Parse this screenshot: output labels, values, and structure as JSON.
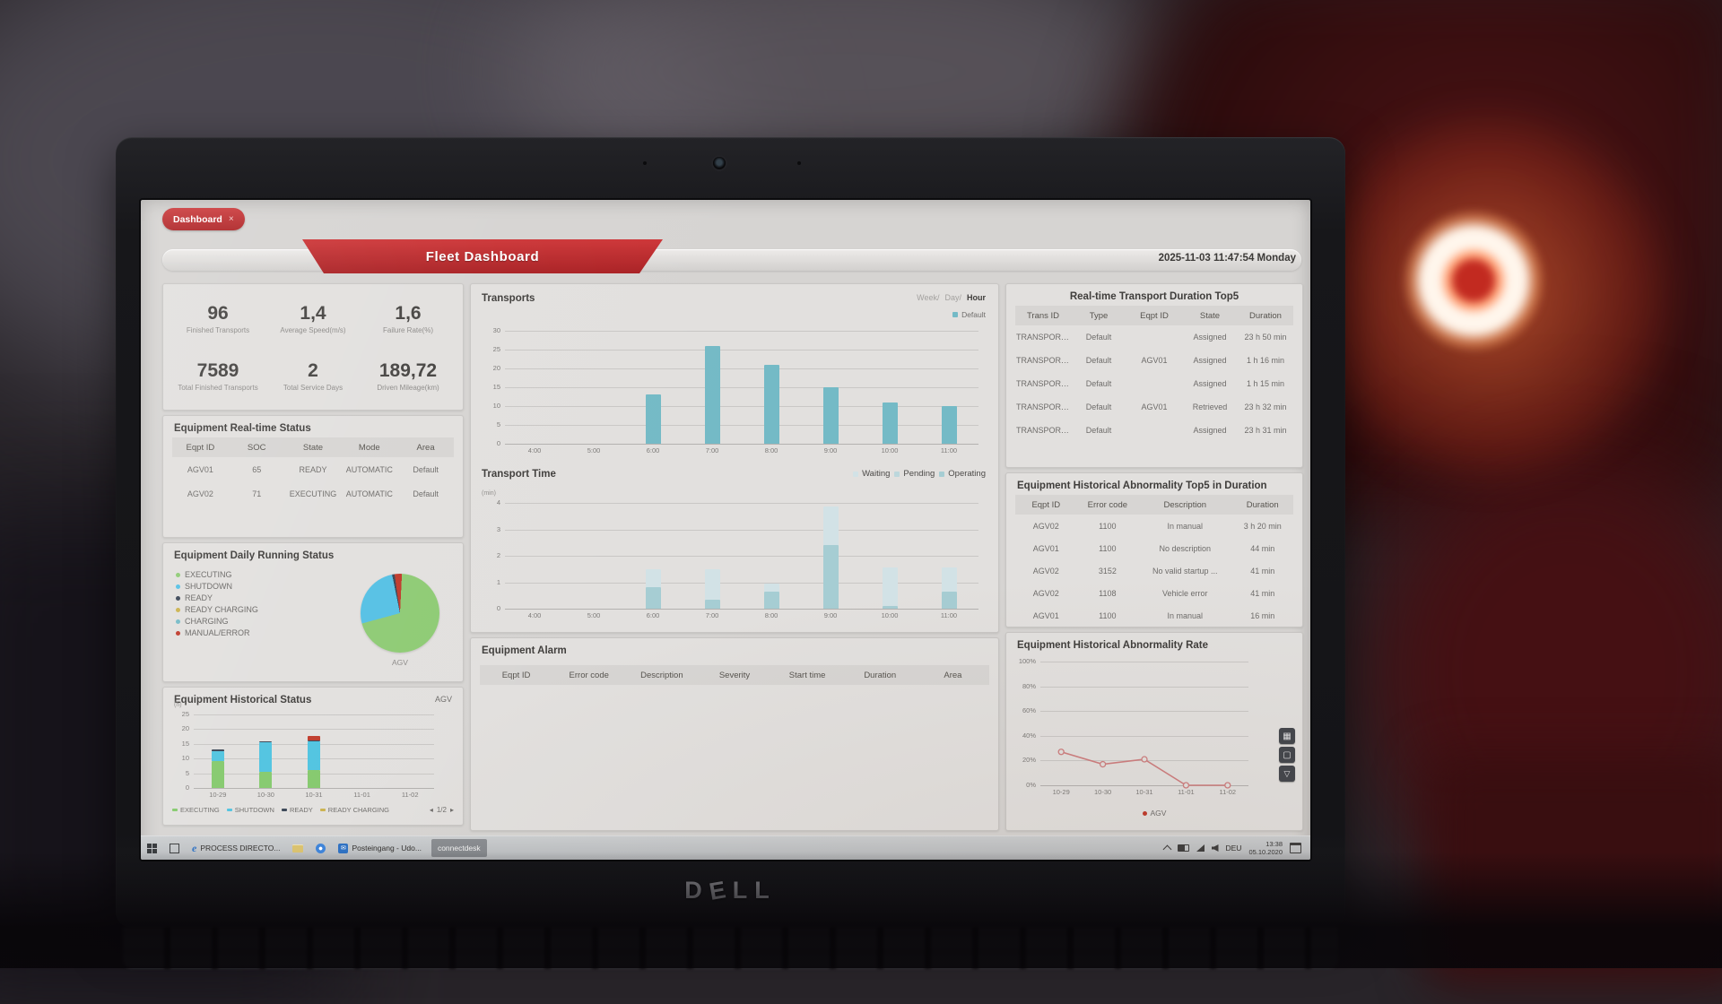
{
  "laptop": {
    "brand": "DELL",
    "letters": [
      "D",
      "E",
      "L",
      "L"
    ]
  },
  "tab": {
    "label": "Dashboard",
    "close": "×"
  },
  "header": {
    "title": "Fleet Dashboard",
    "datetime": "2025-11-03 11:47:54 Monday"
  },
  "kpis": [
    {
      "value": "96",
      "label": "Finished Transports"
    },
    {
      "value": "1,4",
      "label": "Average Speed(m/s)"
    },
    {
      "value": "1,6",
      "label": "Failure Rate(%)"
    },
    {
      "value": "7589",
      "label": "Total Finished Transports"
    },
    {
      "value": "2",
      "label": "Total Service Days"
    },
    {
      "value": "189,72",
      "label": "Driven Mileage(km)"
    }
  ],
  "panels": {
    "realtime": {
      "title": "Equipment Real-time Status",
      "columns": [
        "Eqpt ID",
        "SOC",
        "State",
        "Mode",
        "Area"
      ],
      "rows": [
        [
          "AGV01",
          "65",
          "READY",
          "AUTOMATIC",
          "Default"
        ],
        [
          "AGV02",
          "71",
          "EXECUTING",
          "AUTOMATIC",
          "Default"
        ]
      ]
    },
    "daily": {
      "title": "Equipment Daily Running Status",
      "axis_label": "AGV",
      "legend": [
        {
          "label": "EXECUTING",
          "color": "#8ecb74"
        },
        {
          "label": "SHUTDOWN",
          "color": "#55c0e4"
        },
        {
          "label": "READY",
          "color": "#3a4656"
        },
        {
          "label": "READY CHARGING",
          "color": "#cbb24d"
        },
        {
          "label": "CHARGING",
          "color": "#74bac6"
        },
        {
          "label": "MANUAL/ERROR",
          "color": "#bf3a2b"
        }
      ],
      "pie": {
        "start": -8,
        "slices": [
          {
            "label": "MANUAL/ERROR",
            "value": 3,
            "color": "#bf3a2b"
          },
          {
            "label": "EXECUTING",
            "value": 70,
            "color": "#8ecb74"
          },
          {
            "label": "SHUTDOWN",
            "value": 26,
            "color": "#55c0e4"
          },
          {
            "label": "READY",
            "value": 1,
            "color": "#3a4656"
          }
        ]
      }
    },
    "hist_status": {
      "title": "Equipment Historical Status",
      "corner_label": "AGV",
      "chart": {
        "type": "stack",
        "ylim": 25,
        "yticks": [
          0,
          5,
          10,
          15,
          20,
          25
        ],
        "unit": "(h)",
        "x": [
          "10-29",
          "10-30",
          "10-31",
          "11-01",
          "11-02"
        ],
        "series": [
          {
            "name": "EXECUTING",
            "color": "#84c96c",
            "values": [
              9,
              5.5,
              6,
              0,
              0
            ]
          },
          {
            "name": "SHUTDOWN",
            "color": "#4fc3e0",
            "values": [
              3.5,
              10,
              10,
              0,
              0
            ]
          },
          {
            "name": "READY",
            "color": "#3a4656",
            "values": [
              0.5,
              0.4,
              0.3,
              0,
              0
            ]
          },
          {
            "name": "MANUAL/ERROR",
            "color": "#bf3a2b",
            "values": [
              0,
              0,
              1.5,
              0,
              0
            ]
          }
        ]
      },
      "legend": [
        {
          "label": "EXECUTING",
          "color": "#84c96c"
        },
        {
          "label": "SHUTDOWN",
          "color": "#4fc3e0"
        },
        {
          "label": "READY",
          "color": "#3a4656"
        },
        {
          "label": "READY CHARGING",
          "color": "#cbb24d"
        }
      ],
      "pager": {
        "prev": "◂",
        "page": "1/2",
        "next": "▸"
      }
    },
    "transports": {
      "title": "Transports",
      "periods": [
        "Week/",
        "Day/",
        "Hour"
      ],
      "legend": [
        {
          "label": "Default",
          "color": "#74bac6"
        }
      ],
      "chart": {
        "type": "bar",
        "ylim": 30,
        "yticks": [
          0,
          5,
          10,
          15,
          20,
          25,
          30
        ],
        "x": [
          "4:00",
          "5:00",
          "6:00",
          "7:00",
          "8:00",
          "9:00",
          "10:00",
          "11:00"
        ],
        "values": [
          0,
          0,
          13,
          26,
          21,
          15,
          11,
          10
        ],
        "color": "#74bac6"
      }
    },
    "transport_time": {
      "title": "Transport Time",
      "legend": [
        {
          "label": "Waiting",
          "color": "#d2e2e6"
        },
        {
          "label": "Pending",
          "color": "#bcd7dc"
        },
        {
          "label": "Operating",
          "color": "#a6cdd3"
        }
      ],
      "chart": {
        "type": "stack",
        "ylim": 4,
        "yticks": [
          0,
          1,
          2,
          3,
          4
        ],
        "unit": "(min)",
        "x": [
          "4:00",
          "5:00",
          "6:00",
          "7:00",
          "8:00",
          "9:00",
          "10:00",
          "11:00"
        ],
        "series": [
          {
            "name": "Operating",
            "color": "#a6cdd3",
            "values": [
              0,
              0,
              0.8,
              0.35,
              0.65,
              2.4,
              0.1,
              0.65
            ]
          },
          {
            "name": "Pending",
            "color": "#bcd7dc",
            "values": [
              0,
              0,
              0,
              0,
              0,
              0,
              0,
              0
            ]
          },
          {
            "name": "Waiting",
            "color": "#d2e2e6",
            "values": [
              0,
              0,
              0.7,
              1.15,
              0.3,
              1.45,
              1.45,
              0.9
            ]
          }
        ]
      }
    },
    "alarm": {
      "title": "Equipment Alarm",
      "columns": [
        "Eqpt ID",
        "Error code",
        "Description",
        "Severity",
        "Start time",
        "Duration",
        "Area"
      ],
      "rows": []
    },
    "duration_top5": {
      "title": "Real-time Transport Duration Top5",
      "columns": [
        "Trans ID",
        "Type",
        "Eqpt ID",
        "State",
        "Duration"
      ],
      "rows": [
        [
          "TRANSPORT3...",
          "Default",
          "",
          "Assigned",
          "23 h 50 min"
        ],
        [
          "TRANSPORT6...",
          "Default",
          "AGV01",
          "Assigned",
          "1 h 16 min"
        ],
        [
          "TRANSPORT6...",
          "Default",
          "",
          "Assigned",
          "1 h 15 min"
        ],
        [
          "TRANSPORTS...",
          "Default",
          "AGV01",
          "Retrieved",
          "23 h 32 min"
        ],
        [
          "TRANSPORTS...",
          "Default",
          "",
          "Assigned",
          "23 h 31 min"
        ]
      ]
    },
    "abnormal_top5": {
      "title": "Equipment Historical Abnormality Top5 in Duration",
      "columns": [
        "Eqpt ID",
        "Error code",
        "Description",
        "Duration"
      ],
      "rows": [
        [
          "AGV02",
          "1100",
          "In manual",
          "3 h 20 min"
        ],
        [
          "AGV01",
          "1100",
          "No description",
          "44 min"
        ],
        [
          "AGV02",
          "3152",
          "No valid startup ...",
          "41 min"
        ],
        [
          "AGV02",
          "1108",
          "Vehicle error",
          "41 min"
        ],
        [
          "AGV01",
          "1100",
          "In manual",
          "16 min"
        ]
      ]
    },
    "abnormal_rate": {
      "title": "Equipment Historical Abnormality Rate",
      "legend": [
        {
          "label": "AGV",
          "color": "#bf3a2b"
        }
      ],
      "chart": {
        "type": "line",
        "ylim": 100,
        "yticks": [
          0,
          20,
          40,
          60,
          80,
          100
        ],
        "ysuffix": "%",
        "x": [
          "10-29",
          "10-30",
          "10-31",
          "11-01",
          "11-02"
        ],
        "values": [
          27,
          17,
          21,
          0,
          0
        ],
        "color": "#cd7e7f"
      }
    }
  },
  "taskbar": {
    "process_label": "PROCESS DIRECTO...",
    "mail_label": "Posteingang - Udo...",
    "connect_label": "connectdesk",
    "lang": "DEU",
    "time": "13:38",
    "date": "05.10.2020"
  }
}
